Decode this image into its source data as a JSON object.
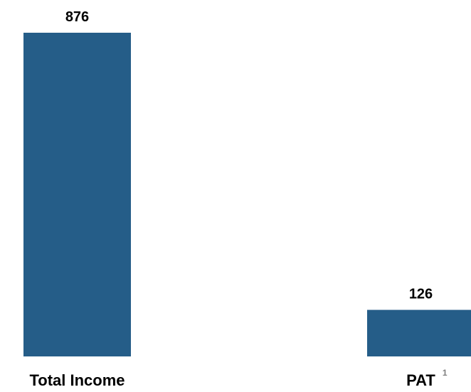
{
  "chart_data": {
    "type": "bar",
    "categories": [
      "Total Income",
      "PAT"
    ],
    "values": [
      876,
      126
    ],
    "footnotes": [
      "",
      "1"
    ],
    "ylim": [
      0,
      876
    ],
    "grid": false,
    "colors": {
      "bar": "#255d88"
    }
  }
}
